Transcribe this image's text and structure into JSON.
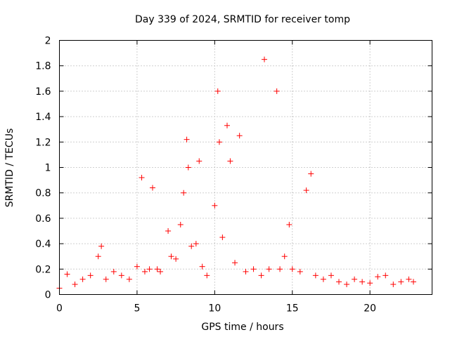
{
  "chart_data": {
    "type": "scatter",
    "title": "Day 339 of 2024, SRMTID for receiver tomp",
    "xlabel": "GPS time / hours",
    "ylabel": "SRMTID / TECUs",
    "xlim": [
      0,
      24
    ],
    "ylim": [
      0,
      2
    ],
    "x_ticks": [
      "0",
      "5",
      "10",
      "15",
      "20"
    ],
    "y_ticks": [
      "0",
      "0.2",
      "0.4",
      "0.6",
      "0.8",
      "1",
      "1.2",
      "1.4",
      "1.6",
      "1.8",
      "2"
    ],
    "grid": true,
    "marker": "plus",
    "color": "#ff0000",
    "series": [
      {
        "name": "SRMTID",
        "x": [
          0.0,
          0.5,
          1.0,
          1.5,
          2.0,
          2.5,
          2.7,
          3.0,
          3.5,
          4.0,
          4.5,
          5.0,
          5.3,
          5.5,
          5.8,
          6.0,
          6.3,
          6.5,
          7.0,
          7.2,
          7.5,
          7.8,
          8.0,
          8.2,
          8.3,
          8.5,
          8.8,
          9.0,
          9.2,
          9.5,
          10.0,
          10.2,
          10.3,
          10.5,
          10.8,
          11.0,
          11.3,
          11.6,
          12.0,
          12.5,
          13.0,
          13.2,
          13.5,
          14.0,
          14.2,
          14.5,
          14.8,
          15.0,
          15.5,
          15.9,
          16.2,
          16.5,
          17.0,
          17.5,
          18.0,
          18.5,
          19.0,
          19.5,
          20.0,
          20.5,
          21.0,
          21.5,
          22.0,
          22.5,
          22.8
        ],
        "y": [
          0.05,
          0.16,
          0.08,
          0.12,
          0.15,
          0.3,
          0.38,
          0.12,
          0.18,
          0.15,
          0.12,
          0.22,
          0.92,
          0.18,
          0.2,
          0.84,
          0.2,
          0.18,
          0.5,
          0.3,
          0.28,
          0.55,
          0.8,
          1.22,
          1.0,
          0.38,
          0.4,
          1.05,
          0.22,
          0.15,
          0.7,
          1.6,
          1.2,
          0.45,
          1.33,
          1.05,
          0.25,
          1.25,
          0.18,
          0.2,
          0.15,
          1.85,
          0.2,
          1.6,
          0.2,
          0.3,
          0.55,
          0.2,
          0.18,
          0.82,
          0.95,
          0.15,
          0.12,
          0.15,
          0.1,
          0.08,
          0.12,
          0.1,
          0.09,
          0.14,
          0.15,
          0.08,
          0.1,
          0.12,
          0.1
        ]
      }
    ]
  }
}
